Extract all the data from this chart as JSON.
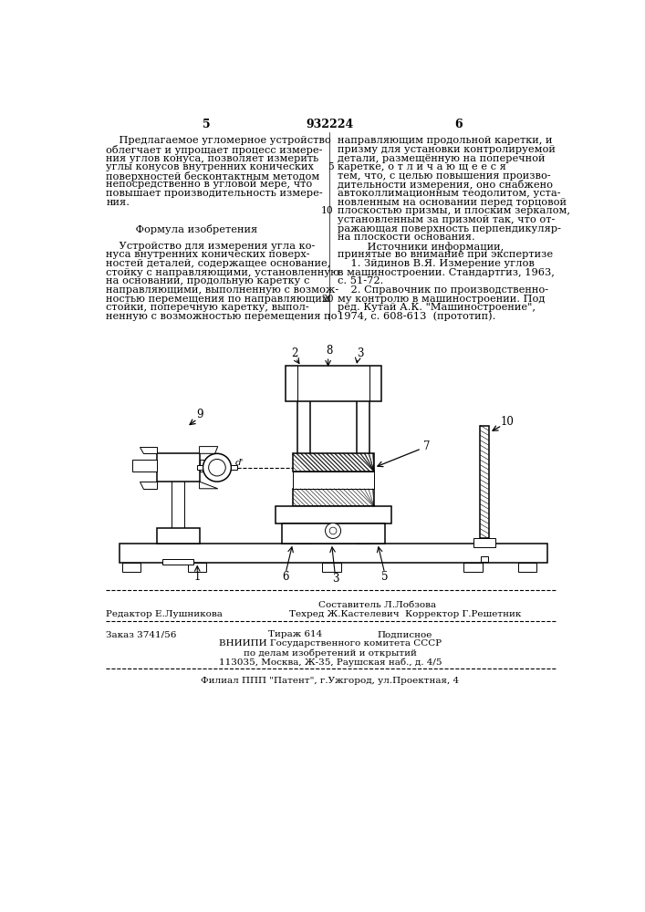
{
  "page_number_left": "5",
  "page_number_center": "932224",
  "page_number_right": "6",
  "left_column_text": [
    "    Предлагаемое угломерное устройство",
    "облегчает и упрощает процесс измере-",
    "ния углов конуса, позволяет измерить",
    "углы конусов внутренних конических",
    "поверхностей бесконтактным методом",
    "непосредственно в угловой мере, что",
    "повышает производительность измере-",
    "ния.",
    "",
    "",
    "         Формула изобретения",
    "",
    "    Устройство для измерения угла ко-",
    "нуса внутренних конических поверх-",
    "ностей деталей, содержащее основание,",
    "стойку с направляющими, установленную",
    "на основании, продольную каретку с",
    "направляющими, выполненную с возмож-",
    "ностью перемещения по направляющим",
    "стойки, поперечную каретку, выпол-",
    "ненную с возможностью перемещения по"
  ],
  "right_col_line_numbers": {
    "3": "5",
    "8": "10",
    "18": "20"
  },
  "right_column_text": [
    "направляющим продольной каретки, и",
    "призму для установки контролируемой",
    "детали, размещённую на поперечной",
    "каретке, о т л и ч а ю щ е е с я",
    "тем, что, с целью повышения произво-",
    "дительности измерения, оно снабжено",
    "автоколлимационным теодолитом, уста-",
    "новленным на основании перед торцовой",
    "плоскостью призмы, и плоским зеркалом,",
    "установленным за призмой так, что от-",
    "ражающая поверхность перпендикуляр-",
    "на плоскости основания.",
    "         Источники информации,",
    "принятые во внимание при экспертизе",
    "    1. Зйдинов В.Я. Измерение углов",
    "в машиностроении. Стандартгиз, 1963,",
    "с. 51-72.",
    "    2. Справочник по производственно-",
    "му контролю в машиностроении. Под",
    "ред. Кутай А.К. \"Машиностроение\",",
    "1974, с. 608-613  (прототип)."
  ],
  "footer_editor": "Редактор Е.Лушникова",
  "footer_compiler": "Составитель Л.Лобзова",
  "footer_techred": "Техред Ж.Кастелевич  Корректор Г.Решетник",
  "footer_order": "Заказ 3741/56",
  "footer_tirazh": "Тираж 614",
  "footer_podpisnoe": "Подписное",
  "footer_vniipи": "ВНИИПИ Государственного комитета СССР",
  "footer_dela": "по делам изобретений и открытий",
  "footer_address": "113035, Москва, Ж-35, Раушская наб., д. 4/5",
  "footer_filial": "Филиал ППП \"Патент\", г.Ужгород, ул.Проектная, 4",
  "bg_color": "#ffffff",
  "text_color": "#000000",
  "font_size_main": 8.2,
  "font_size_header": 9.0,
  "font_size_footer": 7.5
}
